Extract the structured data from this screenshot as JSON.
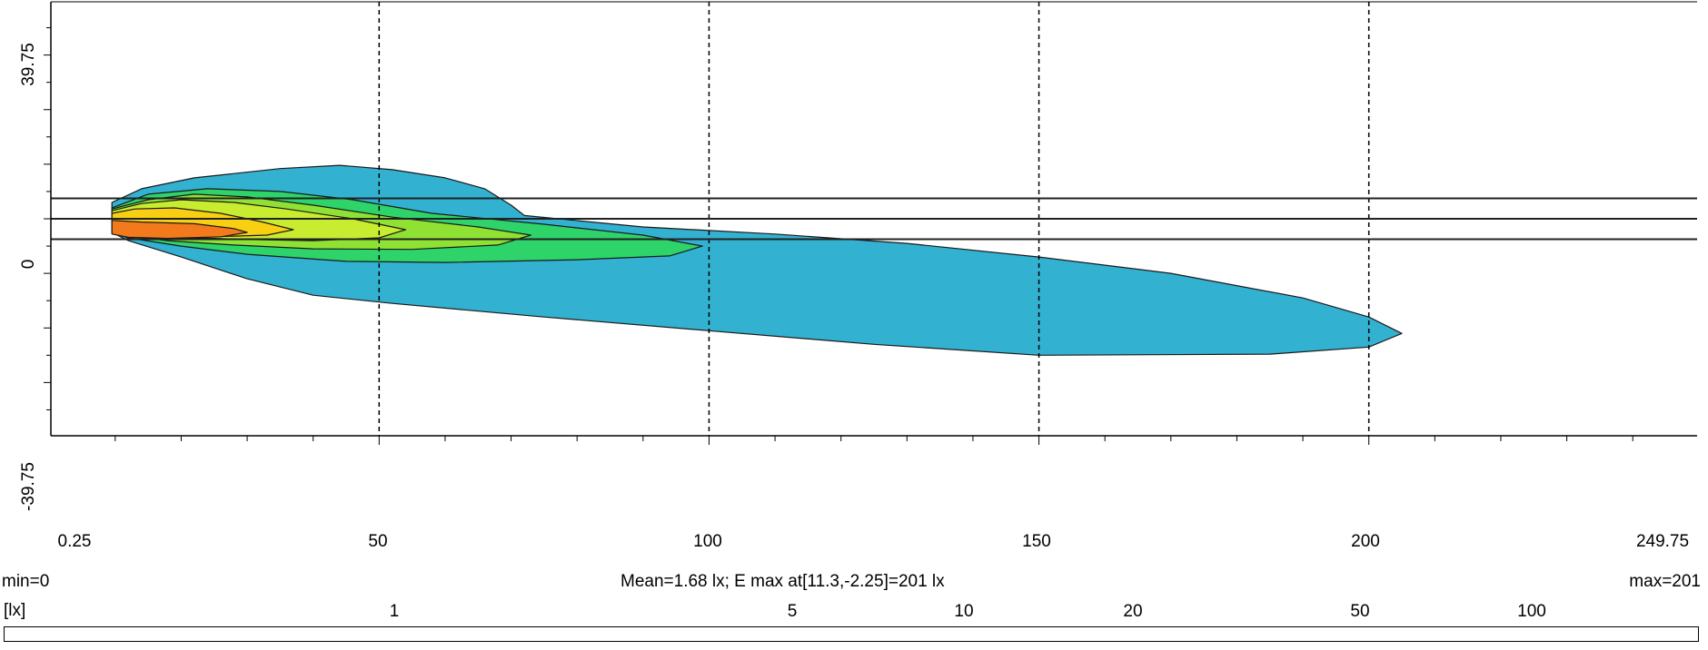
{
  "chart_data": {
    "type": "heatmap",
    "subtype": "isolux-contour",
    "x_axis": {
      "min": 0.25,
      "max": 249.75,
      "ticks": [
        50,
        100,
        150,
        200
      ],
      "end_labels": [
        "0.25",
        "249.75"
      ]
    },
    "y_axis": {
      "min": -39.75,
      "max": 39.75,
      "labels": [
        "39.75",
        "0",
        "-39.75"
      ]
    },
    "grid": "vertical dashed at ticks",
    "horizontal_lines_y": [
      3.75,
      0,
      -3.75
    ],
    "summary": {
      "min": "min=0",
      "max": "max=201",
      "mean_text": "Mean=1.68 lx; E max at[11.3,-2.25]=201 lx"
    },
    "unit_label": "[lx]",
    "contour_levels": [
      {
        "level": 1,
        "label": "1",
        "color": "#33b1d1"
      },
      {
        "level": 5,
        "label": "5",
        "color": "#2ed36a"
      },
      {
        "level": 10,
        "label": "10",
        "color": "#8fe234"
      },
      {
        "level": 20,
        "label": "20",
        "color": "#c8ec2f"
      },
      {
        "level": 50,
        "label": "50",
        "color": "#f8cf12"
      },
      {
        "level": 100,
        "label": "100",
        "color": "#f27a1c"
      }
    ],
    "regions": [
      {
        "level": 1,
        "extent_x": [
          9.5,
          205
        ],
        "extent_y": [
          -22,
          9.5
        ]
      },
      {
        "level": 5,
        "extent_x": [
          9.5,
          99
        ],
        "extent_y": [
          -8,
          5.5
        ]
      },
      {
        "level": 10,
        "extent_x": [
          9.5,
          73
        ],
        "extent_y": [
          -8,
          5.5
        ]
      },
      {
        "level": 20,
        "extent_x": [
          9.5,
          54
        ],
        "extent_y": [
          -6,
          3.5
        ]
      },
      {
        "level": 50,
        "extent_x": [
          9.5,
          37
        ],
        "extent_y": [
          -4.5,
          2
        ]
      },
      {
        "level": 100,
        "extent_x": [
          9.5,
          30
        ],
        "extent_y": [
          -4,
          -0.5
        ]
      }
    ]
  }
}
